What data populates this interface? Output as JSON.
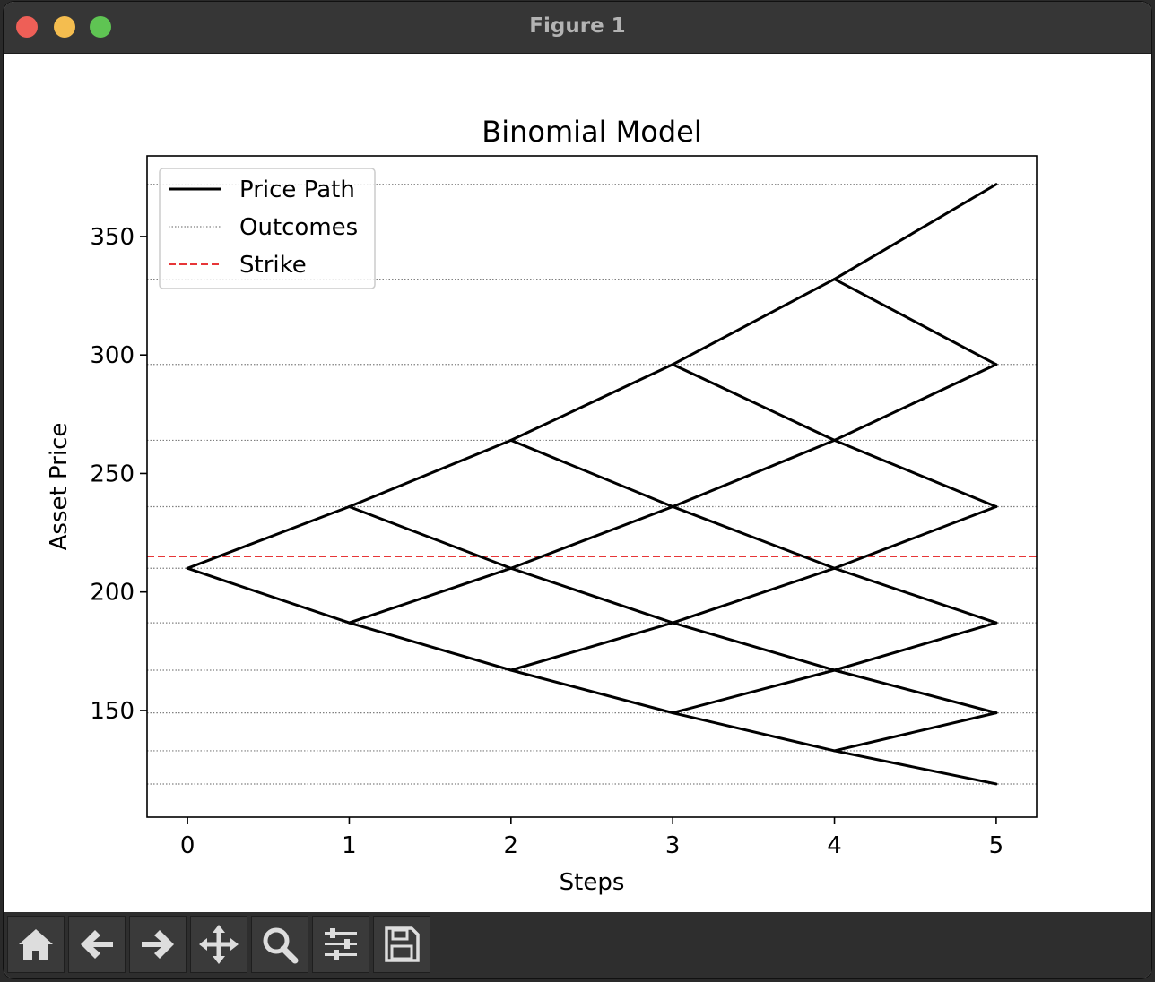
{
  "window": {
    "title": "Figure 1"
  },
  "toolbar": {
    "buttons": [
      {
        "name": "home-button",
        "icon": "home-icon"
      },
      {
        "name": "back-button",
        "icon": "arrow-left-icon"
      },
      {
        "name": "forward-button",
        "icon": "arrow-right-icon"
      },
      {
        "name": "pan-button",
        "icon": "move-icon"
      },
      {
        "name": "zoom-button",
        "icon": "magnifier-icon"
      },
      {
        "name": "configure-subplots-button",
        "icon": "sliders-icon"
      },
      {
        "name": "save-button",
        "icon": "floppy-disk-icon"
      }
    ]
  },
  "chart_data": {
    "type": "line",
    "title": "Binomial Model",
    "xlabel": "Steps",
    "ylabel": "Asset Price",
    "xlim": [
      -0.25,
      5.25
    ],
    "ylim": [
      105,
      384
    ],
    "xticks": [
      0,
      1,
      2,
      3,
      4,
      5
    ],
    "yticks": [
      150,
      200,
      250,
      300,
      350
    ],
    "x_tick_labels": [
      "0",
      "1",
      "2",
      "3",
      "4",
      "5"
    ],
    "y_tick_labels": [
      "150",
      "200",
      "250",
      "300",
      "350"
    ],
    "legend": {
      "position": "upper left",
      "entries": [
        {
          "label": "Price Path",
          "style": "solid",
          "color": "#000000"
        },
        {
          "label": "Outcomes",
          "style": "dotted",
          "color": "#808080"
        },
        {
          "label": "Strike",
          "style": "dashed",
          "color": "#e41a1c"
        }
      ]
    },
    "tree_nodes": [
      [
        210
      ],
      [
        236,
        187
      ],
      [
        264,
        210,
        167
      ],
      [
        296,
        236,
        187,
        149
      ],
      [
        332,
        264,
        210,
        167,
        133
      ],
      [
        372,
        296,
        236,
        187,
        149,
        119
      ]
    ],
    "outcome_levels": [
      372,
      332,
      296,
      264,
      236,
      210,
      187,
      167,
      149,
      133,
      119
    ],
    "strike": 215,
    "colors": {
      "path": "#000000",
      "outcomes": "#808080",
      "strike": "#e41a1c"
    }
  }
}
